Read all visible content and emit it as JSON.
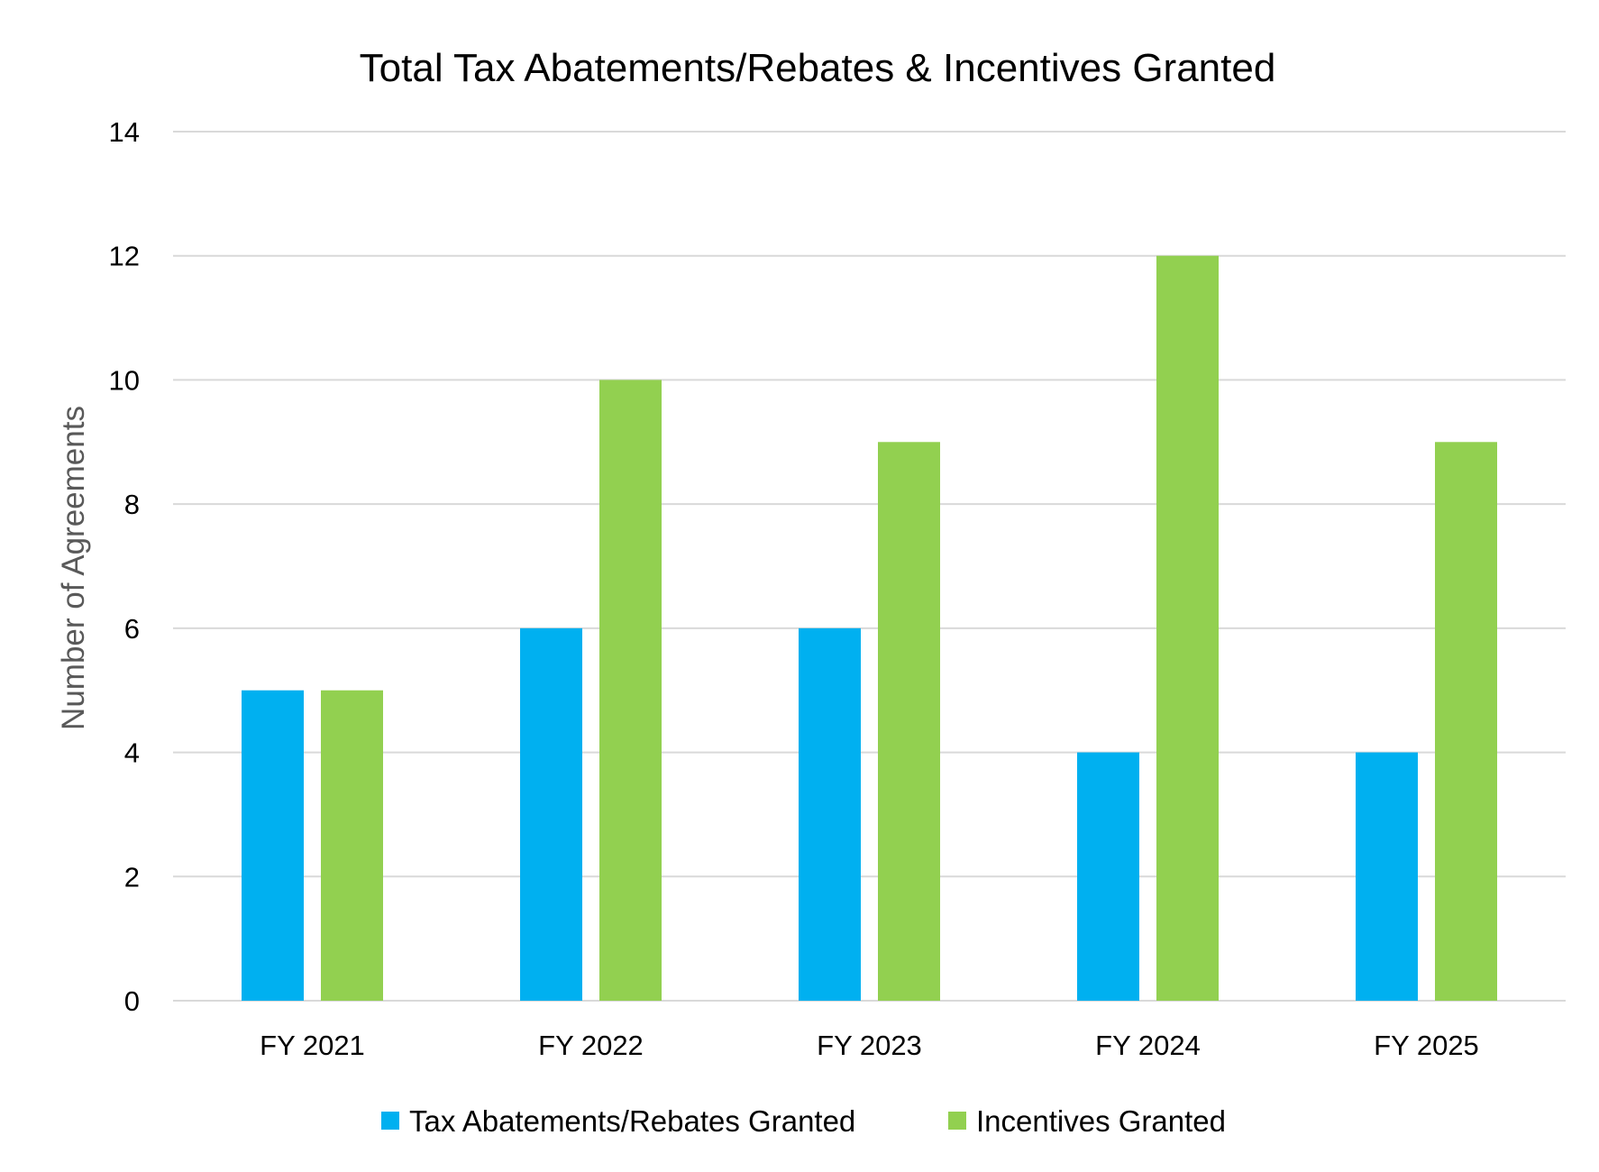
{
  "chart_data": {
    "type": "bar",
    "title": "Total Tax Abatements/Rebates & Incentives Granted",
    "xlabel": "",
    "ylabel": "Number of Agreements",
    "categories": [
      "FY 2021",
      "FY 2022",
      "FY 2023",
      "FY 2024",
      "FY 2025"
    ],
    "series": [
      {
        "name": "Tax Abatements/Rebates Granted",
        "values": [
          5,
          6,
          6,
          4,
          4
        ],
        "color": "#00B0F0"
      },
      {
        "name": "Incentives Granted",
        "values": [
          5,
          10,
          9,
          12,
          9
        ],
        "color": "#92D050"
      }
    ],
    "ylim": [
      0,
      14
    ],
    "yticks": [
      "0",
      "2",
      "4",
      "6",
      "8",
      "10",
      "12",
      "14"
    ],
    "grid": true,
    "gridColor": "#D9D9D9",
    "legend_position": "bottom"
  }
}
